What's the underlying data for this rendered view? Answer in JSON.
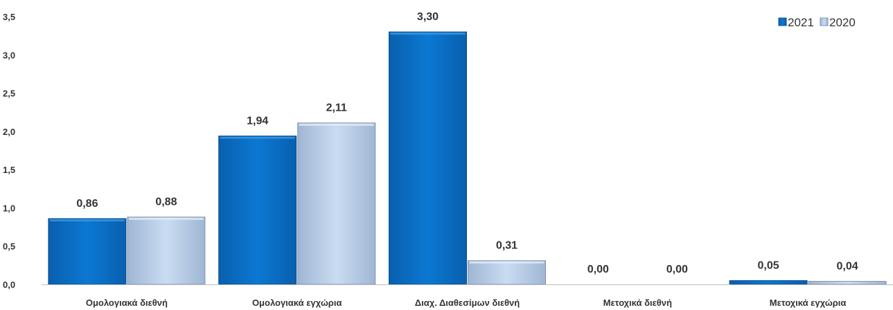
{
  "chart_data": {
    "type": "bar",
    "categories": [
      "Ομολογιακά διεθνή",
      "Ομολογιακά εγχώρια",
      "Διαχ. Διαθεσίμων διεθνή",
      "Μετοχικά διεθνή",
      "Μετοχικά εγχώρια"
    ],
    "series": [
      {
        "name": "2021",
        "values": [
          0.86,
          1.94,
          3.3,
          0.0,
          0.05
        ],
        "labels": [
          "0,86",
          "1,94",
          "3,30",
          "0,00",
          "0,05"
        ],
        "color": "#0b74cc"
      },
      {
        "name": "2020",
        "values": [
          0.88,
          2.11,
          0.31,
          0.0,
          0.04
        ],
        "labels": [
          "0,88",
          "2,11",
          "0,31",
          "0,00",
          "0,04"
        ],
        "color": "#c5d9f1"
      }
    ],
    "yticks": [
      0,
      0.5,
      1.0,
      1.5,
      2.0,
      2.5,
      3.0,
      3.5
    ],
    "ytick_labels": [
      "0,0",
      "0,5",
      "1,0",
      "1,5",
      "2,0",
      "2,5",
      "3,0",
      "3,5"
    ],
    "ylim": [
      0,
      3.5
    ],
    "grid": false,
    "legend_position": "top-right",
    "title": "",
    "xlabel": "",
    "ylabel": ""
  }
}
